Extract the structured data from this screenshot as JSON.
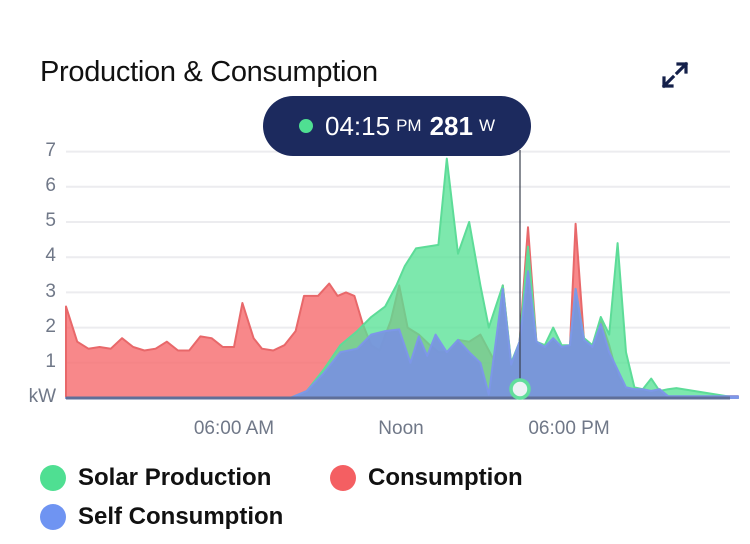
{
  "header": {
    "title": "Production & Consumption",
    "expand_icon": "expand-arrows-icon"
  },
  "tooltip": {
    "time": "04:15",
    "ampm": "PM",
    "value": "281",
    "unit": "W",
    "dot_color": "#4fdf92"
  },
  "axis": {
    "y_ticks": [
      "7",
      "6",
      "5",
      "4",
      "3",
      "2",
      "1",
      "kW"
    ],
    "x_ticks": [
      "06:00 AM",
      "Noon",
      "06:00 PM"
    ]
  },
  "legend": [
    {
      "label": "Solar Production",
      "color": "#4fdf92"
    },
    {
      "label": "Consumption",
      "color": "#f45f62"
    },
    {
      "label": "Self Consumption",
      "color": "#6f94f2"
    }
  ],
  "chart_data": {
    "type": "area",
    "title": "Production & Consumption",
    "xlabel": "",
    "ylabel": "kW",
    "ylim": [
      0,
      7
    ],
    "x_ticks": [
      "06:00 AM",
      "Noon",
      "06:00 PM"
    ],
    "x_unit": "hours since midnight (approx.)",
    "grid": true,
    "legend_position": "bottom",
    "cursor": {
      "time": "04:15 PM",
      "value_w": 281
    },
    "series": [
      {
        "name": "Consumption",
        "color": "#f45f62",
        "points": [
          [
            0,
            2.6
          ],
          [
            0.4,
            1.6
          ],
          [
            0.8,
            1.4
          ],
          [
            1.2,
            1.45
          ],
          [
            1.6,
            1.4
          ],
          [
            2.0,
            1.7
          ],
          [
            2.4,
            1.45
          ],
          [
            2.8,
            1.35
          ],
          [
            3.2,
            1.4
          ],
          [
            3.6,
            1.6
          ],
          [
            4.0,
            1.35
          ],
          [
            4.4,
            1.35
          ],
          [
            4.8,
            1.75
          ],
          [
            5.2,
            1.7
          ],
          [
            5.6,
            1.45
          ],
          [
            6.0,
            1.45
          ],
          [
            6.3,
            2.7
          ],
          [
            6.7,
            1.7
          ],
          [
            7.0,
            1.4
          ],
          [
            7.4,
            1.35
          ],
          [
            7.8,
            1.5
          ],
          [
            8.2,
            1.9
          ],
          [
            8.5,
            2.9
          ],
          [
            9.0,
            2.9
          ],
          [
            9.4,
            3.25
          ],
          [
            9.7,
            2.9
          ],
          [
            10.0,
            3.0
          ],
          [
            10.3,
            2.9
          ],
          [
            10.6,
            2.1
          ],
          [
            10.9,
            1.5
          ],
          [
            11.2,
            1.35
          ],
          [
            11.6,
            2.2
          ],
          [
            11.9,
            3.2
          ],
          [
            12.2,
            2.0
          ],
          [
            12.6,
            1.8
          ],
          [
            13.0,
            1.5
          ],
          [
            13.3,
            1.3
          ],
          [
            13.6,
            1.3
          ],
          [
            14.0,
            1.65
          ],
          [
            14.4,
            1.6
          ],
          [
            14.8,
            1.8
          ],
          [
            15.0,
            1.5
          ],
          [
            15.3,
            1.05
          ],
          [
            15.6,
            3.2
          ],
          [
            15.9,
            0.95
          ],
          [
            16.2,
            1.6
          ],
          [
            16.5,
            4.85
          ],
          [
            16.8,
            1.6
          ],
          [
            17.1,
            1.45
          ],
          [
            17.4,
            1.65
          ],
          [
            17.7,
            1.45
          ],
          [
            18.0,
            1.5
          ],
          [
            18.2,
            4.95
          ],
          [
            18.5,
            1.65
          ],
          [
            18.8,
            1.45
          ],
          [
            19.1,
            2.2
          ],
          [
            19.4,
            1.5
          ],
          [
            19.7,
            0.6
          ],
          [
            20.0,
            0.3
          ],
          [
            20.3,
            0.25
          ],
          [
            20.6,
            0.25
          ],
          [
            20.9,
            0.2
          ],
          [
            21.2,
            0.25
          ],
          [
            21.5,
            0.05
          ],
          [
            24,
            0.05
          ]
        ]
      },
      {
        "name": "Solar Production",
        "color": "#4fdf92",
        "points": [
          [
            0,
            0
          ],
          [
            8.0,
            0
          ],
          [
            8.6,
            0.2
          ],
          [
            9.2,
            0.8
          ],
          [
            9.8,
            1.5
          ],
          [
            10.4,
            1.9
          ],
          [
            10.9,
            2.3
          ],
          [
            11.4,
            2.6
          ],
          [
            11.8,
            3.2
          ],
          [
            12.1,
            3.75
          ],
          [
            12.5,
            4.25
          ],
          [
            12.9,
            4.3
          ],
          [
            13.3,
            4.35
          ],
          [
            13.6,
            6.8
          ],
          [
            14.0,
            4.1
          ],
          [
            14.4,
            5.0
          ],
          [
            14.8,
            3.2
          ],
          [
            15.1,
            2.0
          ],
          [
            15.6,
            3.2
          ],
          [
            15.9,
            1.0
          ],
          [
            16.2,
            1.6
          ],
          [
            16.5,
            4.3
          ],
          [
            16.8,
            1.6
          ],
          [
            17.1,
            1.5
          ],
          [
            17.4,
            2.0
          ],
          [
            17.7,
            1.5
          ],
          [
            18.0,
            1.5
          ],
          [
            18.2,
            3.1
          ],
          [
            18.5,
            1.7
          ],
          [
            18.8,
            1.5
          ],
          [
            19.1,
            2.3
          ],
          [
            19.4,
            1.8
          ],
          [
            19.7,
            4.4
          ],
          [
            20.0,
            1.3
          ],
          [
            20.3,
            0.3
          ],
          [
            20.6,
            0.25
          ],
          [
            20.9,
            0.55
          ],
          [
            21.2,
            0.2
          ],
          [
            21.5,
            0.25
          ],
          [
            21.8,
            0.28
          ],
          [
            24,
            0
          ]
        ]
      },
      {
        "name": "Self Consumption",
        "color": "#6f94f2",
        "points": [
          [
            0,
            0
          ],
          [
            8.0,
            0
          ],
          [
            8.6,
            0.2
          ],
          [
            9.2,
            0.7
          ],
          [
            9.8,
            1.3
          ],
          [
            10.4,
            1.4
          ],
          [
            10.9,
            1.8
          ],
          [
            11.4,
            1.9
          ],
          [
            11.9,
            1.95
          ],
          [
            12.3,
            1.0
          ],
          [
            12.6,
            1.75
          ],
          [
            12.9,
            1.2
          ],
          [
            13.2,
            1.8
          ],
          [
            13.6,
            1.3
          ],
          [
            14.0,
            1.65
          ],
          [
            14.4,
            1.3
          ],
          [
            14.8,
            1.0
          ],
          [
            15.1,
            0.1
          ],
          [
            15.6,
            3.1
          ],
          [
            15.9,
            0.95
          ],
          [
            16.2,
            1.6
          ],
          [
            16.5,
            3.6
          ],
          [
            16.8,
            1.6
          ],
          [
            17.1,
            1.45
          ],
          [
            17.4,
            1.7
          ],
          [
            17.7,
            1.45
          ],
          [
            18.0,
            1.5
          ],
          [
            18.2,
            3.1
          ],
          [
            18.5,
            1.65
          ],
          [
            18.8,
            1.45
          ],
          [
            19.1,
            2.1
          ],
          [
            19.4,
            1.3
          ],
          [
            19.7,
            0.8
          ],
          [
            20.0,
            0.3
          ],
          [
            20.3,
            0.25
          ],
          [
            20.6,
            0.25
          ],
          [
            20.9,
            0.2
          ],
          [
            21.2,
            0.25
          ],
          [
            21.5,
            0.05
          ],
          [
            24,
            0.05
          ]
        ]
      }
    ]
  }
}
